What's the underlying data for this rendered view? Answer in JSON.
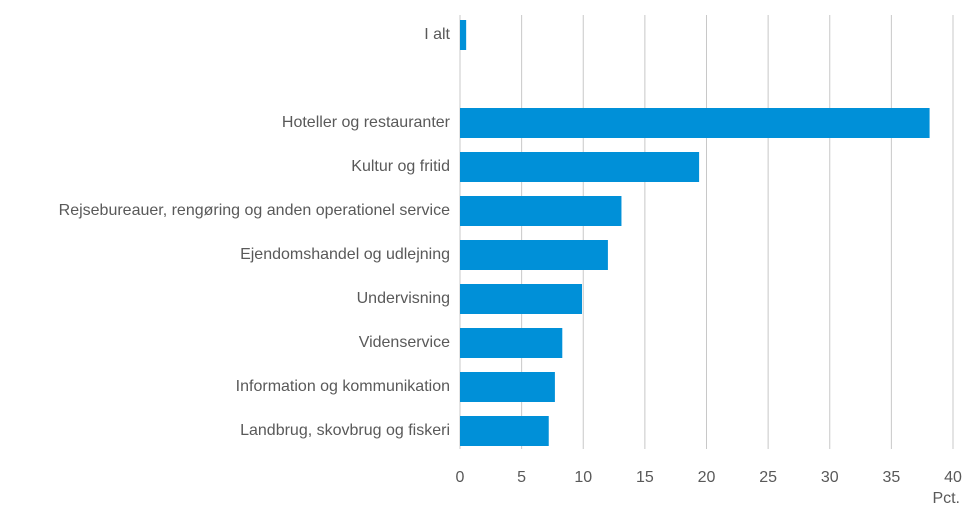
{
  "chart_data": {
    "type": "bar",
    "orientation": "horizontal",
    "categories": [
      "I alt",
      null,
      "Hoteller og restauranter",
      "Kultur og fritid",
      "Rejsebureauer, rengøring og anden operationel service",
      "Ejendomshandel og udlejning",
      "Undervisning",
      "Videnservice",
      "Information og kommunikation",
      "Landbrug, skovbrug og fiskeri"
    ],
    "values": [
      0.5,
      null,
      38.1,
      19.4,
      13.1,
      12.0,
      9.9,
      8.3,
      7.7,
      7.2
    ],
    "color": "#0090d8",
    "xlim": [
      0,
      40
    ],
    "xticks": [
      0,
      5,
      10,
      15,
      20,
      25,
      30,
      35,
      40
    ],
    "x_label": "Pct.",
    "grid": true
  }
}
